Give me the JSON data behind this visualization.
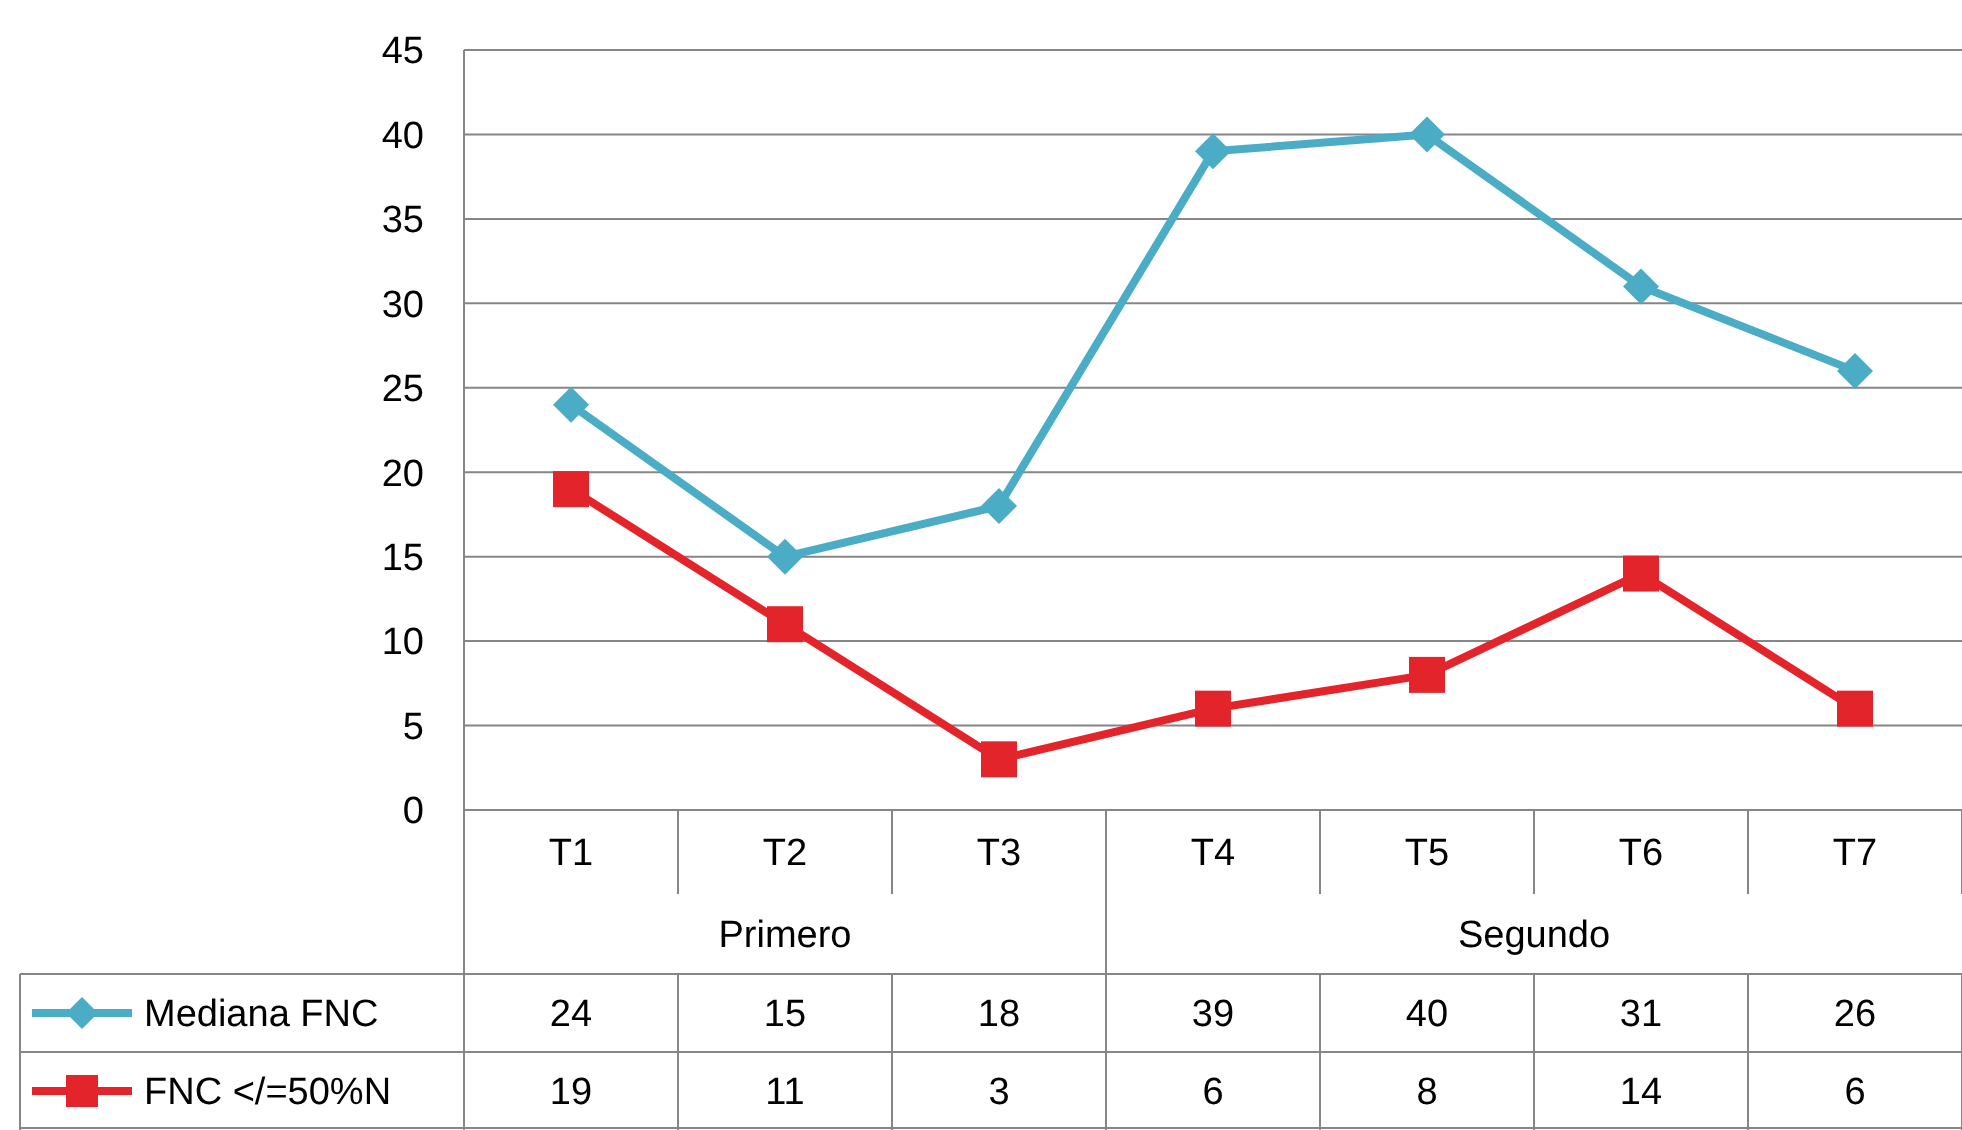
{
  "chart_data": {
    "type": "line",
    "categories": [
      "T1",
      "T2",
      "T3",
      "T4",
      "T5",
      "T6",
      "T7"
    ],
    "series": [
      {
        "name": "Mediana FNC",
        "color": "#4bacc6",
        "marker": "diamond",
        "values": [
          24,
          15,
          18,
          39,
          40,
          31,
          26
        ]
      },
      {
        "name": "FNC </=50%N",
        "color": "#e3242b",
        "marker": "square",
        "values": [
          19,
          11,
          3,
          6,
          8,
          14,
          6
        ]
      }
    ],
    "ylim": [
      0,
      45
    ],
    "yticks": [
      0,
      5,
      10,
      15,
      20,
      25,
      30,
      35,
      40,
      45
    ],
    "grid": "y",
    "legend": "bottom",
    "data_labels": true,
    "annotations": [
      "Primero",
      "Segundo"
    ]
  }
}
